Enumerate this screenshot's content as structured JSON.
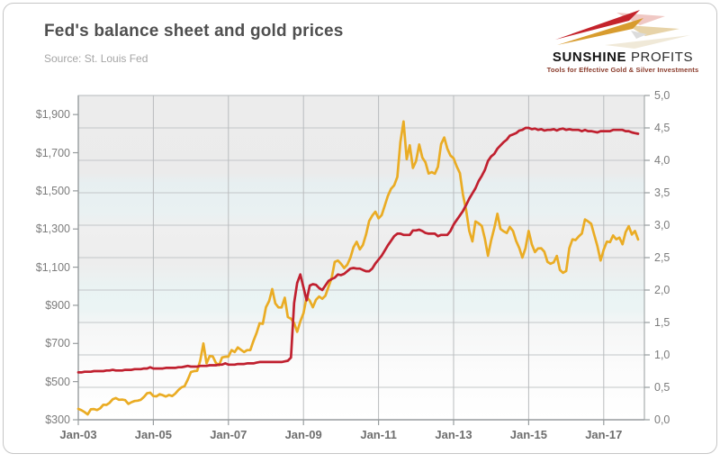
{
  "header": {
    "title": "Fed's balance sheet and gold prices",
    "source": "Source: St. Louis Fed"
  },
  "logo": {
    "brand_bold": "SUNSHINE",
    "brand_light": "PROFITS",
    "tagline": "Tools for Effective Gold & Silver Investments",
    "brand_red": "#c4232b",
    "brand_gold": "#d89c2e"
  },
  "chart_data": {
    "type": "line",
    "title": "Fed's balance sheet and gold prices",
    "source": "Source: St. Louis Fed",
    "grid": "on",
    "legend": "none",
    "x_axis": {
      "start_year": 2003,
      "points_per_year": 12,
      "end_label_year": 2018,
      "ticks": [
        {
          "label": "Jan-03",
          "year": 2003
        },
        {
          "label": "Jan-05",
          "year": 2005
        },
        {
          "label": "Jan-07",
          "year": 2007
        },
        {
          "label": "Jan-09",
          "year": 2009
        },
        {
          "label": "Jan-11",
          "year": 2011
        },
        {
          "label": "Jan-13",
          "year": 2013
        },
        {
          "label": "Jan-15",
          "year": 2015
        },
        {
          "label": "Jan-17",
          "year": 2017
        }
      ]
    },
    "y_left": {
      "min": 300,
      "max": 2000,
      "unit": "USD per ounce",
      "ticks": [
        {
          "label": "$300",
          "value": 300
        },
        {
          "label": "$500",
          "value": 500
        },
        {
          "label": "$700",
          "value": 700
        },
        {
          "label": "$900",
          "value": 900
        },
        {
          "label": "$1,100",
          "value": 1100
        },
        {
          "label": "$1,300",
          "value": 1300
        },
        {
          "label": "$1,500",
          "value": 1500
        },
        {
          "label": "$1,700",
          "value": 1700
        },
        {
          "label": "$1,900",
          "value": 1900
        }
      ]
    },
    "y_right": {
      "min": 0,
      "max": 5,
      "unit": "trillion USD",
      "gridline_step": 0.5,
      "ticks": [
        {
          "label": "0,0",
          "value": 0.0
        },
        {
          "label": "0,5",
          "value": 0.5
        },
        {
          "label": "1,0",
          "value": 1.0
        },
        {
          "label": "1,5",
          "value": 1.5
        },
        {
          "label": "2,0",
          "value": 2.0
        },
        {
          "label": "2,5",
          "value": 2.5
        },
        {
          "label": "3,0",
          "value": 3.0
        },
        {
          "label": "3,5",
          "value": 3.5
        },
        {
          "label": "4,0",
          "value": 4.0
        },
        {
          "label": "4,5",
          "value": 4.5
        },
        {
          "label": "5,0",
          "value": 5.0
        }
      ]
    },
    "series": [
      {
        "id": "gold-price",
        "axis": "left",
        "color": "#EAAC24",
        "values": [
          357,
          350,
          340,
          328,
          355,
          356,
          351,
          360,
          379,
          378,
          389,
          407,
          414,
          405,
          406,
          403,
          383,
          392,
          398,
          400,
          405,
          420,
          439,
          442,
          424,
          423,
          434,
          429,
          422,
          430,
          424,
          437,
          456,
          470,
          476,
          510,
          550,
          555,
          557,
          611,
          700,
          596,
          634,
          632,
          598,
          586,
          627,
          630,
          631,
          665,
          655,
          679,
          667,
          655,
          665,
          665,
          713,
          755,
          806,
          803,
          890,
          922,
          985,
          910,
          889,
          889,
          940,
          839,
          830,
          807,
          761,
          816,
          858,
          943,
          924,
          890,
          929,
          946,
          934,
          950,
          997,
          1043,
          1127,
          1135,
          1118,
          1095,
          1113,
          1149,
          1205,
          1233,
          1193,
          1216,
          1271,
          1342,
          1370,
          1391,
          1356,
          1373,
          1424,
          1474,
          1511,
          1529,
          1573,
          1757,
          1864,
          1666,
          1739,
          1620,
          1656,
          1743,
          1674,
          1650,
          1591,
          1598,
          1590,
          1626,
          1745,
          1780,
          1722,
          1685,
          1671,
          1628,
          1593,
          1480,
          1400,
          1290,
          1235,
          1340,
          1330,
          1316,
          1250,
          1160,
          1240,
          1305,
          1380,
          1300,
          1288,
          1279,
          1311,
          1290,
          1237,
          1200,
          1150,
          1200,
          1290,
          1220,
          1179,
          1198,
          1199,
          1181,
          1128,
          1118,
          1125,
          1159,
          1086,
          1070,
          1080,
          1200,
          1246,
          1242,
          1261,
          1276,
          1350,
          1340,
          1327,
          1267,
          1210,
          1135,
          1192,
          1234,
          1231,
          1266,
          1246,
          1255,
          1220,
          1283,
          1315,
          1271,
          1290,
          1245
        ]
      },
      {
        "id": "fed-balance-sheet",
        "axis": "right",
        "color": "#C0202F",
        "values": [
          0.73,
          0.73,
          0.74,
          0.74,
          0.74,
          0.75,
          0.75,
          0.75,
          0.75,
          0.76,
          0.76,
          0.77,
          0.76,
          0.76,
          0.76,
          0.77,
          0.77,
          0.77,
          0.78,
          0.78,
          0.78,
          0.79,
          0.79,
          0.81,
          0.79,
          0.79,
          0.79,
          0.79,
          0.8,
          0.8,
          0.8,
          0.8,
          0.81,
          0.81,
          0.82,
          0.83,
          0.82,
          0.82,
          0.82,
          0.83,
          0.83,
          0.83,
          0.84,
          0.84,
          0.84,
          0.85,
          0.85,
          0.87,
          0.85,
          0.85,
          0.85,
          0.86,
          0.86,
          0.86,
          0.87,
          0.87,
          0.87,
          0.88,
          0.89,
          0.89,
          0.89,
          0.89,
          0.89,
          0.89,
          0.89,
          0.89,
          0.9,
          0.91,
          0.96,
          1.8,
          2.11,
          2.24,
          2.04,
          1.84,
          2.07,
          2.09,
          2.08,
          2.03,
          2.0,
          2.07,
          2.14,
          2.17,
          2.19,
          2.24,
          2.23,
          2.25,
          2.29,
          2.33,
          2.34,
          2.33,
          2.33,
          2.31,
          2.29,
          2.29,
          2.33,
          2.41,
          2.47,
          2.53,
          2.61,
          2.69,
          2.76,
          2.83,
          2.87,
          2.87,
          2.85,
          2.85,
          2.85,
          2.92,
          2.92,
          2.93,
          2.91,
          2.88,
          2.87,
          2.87,
          2.87,
          2.83,
          2.85,
          2.85,
          2.85,
          2.91,
          3.01,
          3.08,
          3.15,
          3.22,
          3.31,
          3.41,
          3.49,
          3.57,
          3.68,
          3.76,
          3.85,
          3.99,
          4.06,
          4.1,
          4.18,
          4.23,
          4.28,
          4.32,
          4.38,
          4.4,
          4.42,
          4.46,
          4.47,
          4.5,
          4.5,
          4.48,
          4.49,
          4.47,
          4.48,
          4.46,
          4.47,
          4.47,
          4.48,
          4.46,
          4.48,
          4.49,
          4.47,
          4.48,
          4.47,
          4.47,
          4.47,
          4.45,
          4.47,
          4.45,
          4.45,
          4.44,
          4.43,
          4.45,
          4.45,
          4.45,
          4.45,
          4.47,
          4.47,
          4.47,
          4.47,
          4.45,
          4.45,
          4.43,
          4.42,
          4.41
        ]
      }
    ]
  }
}
